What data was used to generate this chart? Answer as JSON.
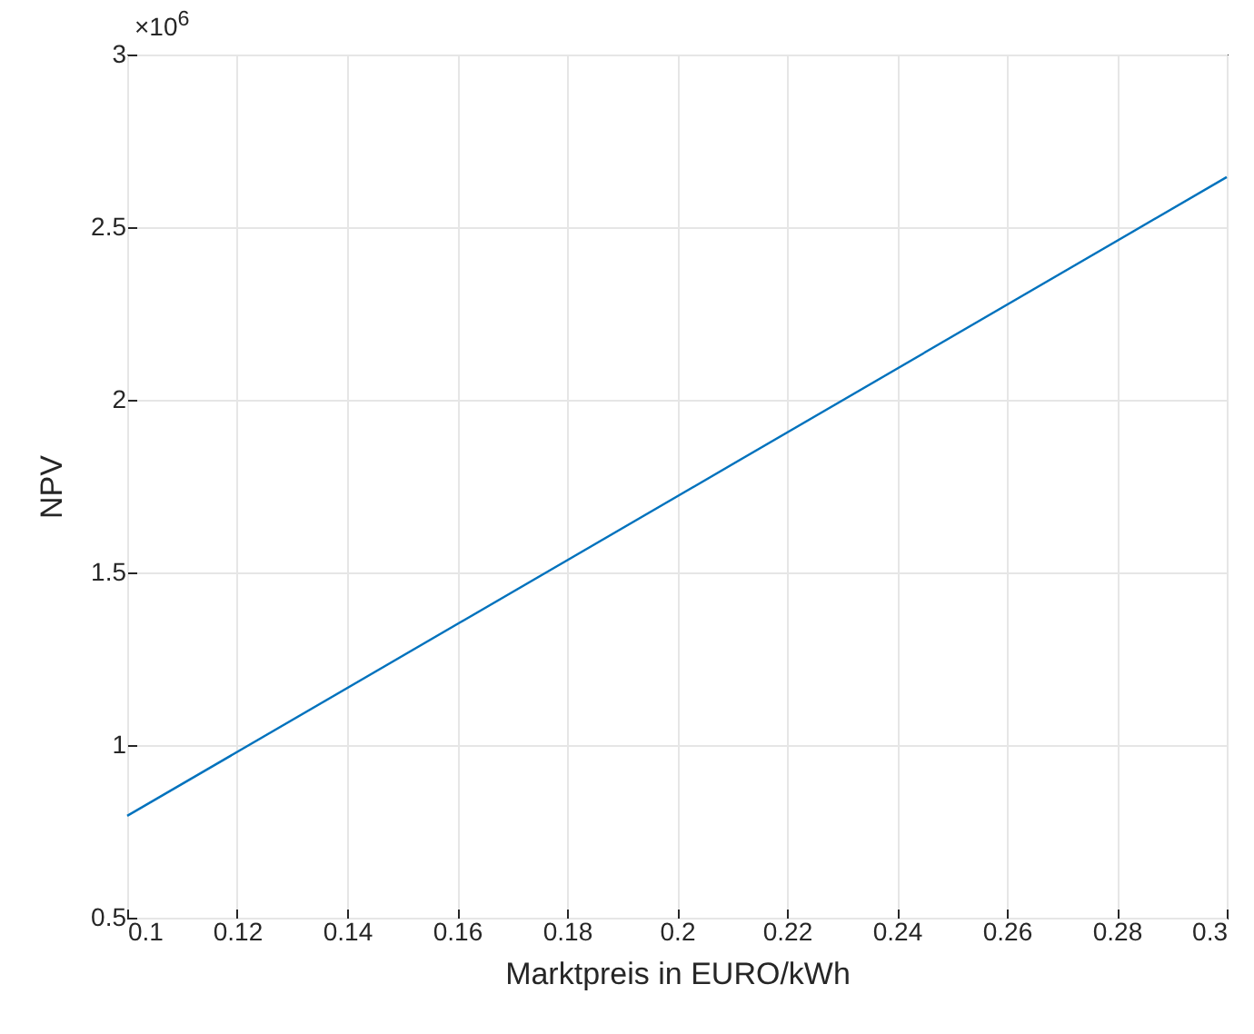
{
  "chart_data": {
    "type": "line",
    "xlabel": "Marktpreis in EURO/kWh",
    "ylabel": "NPV",
    "annotations": [
      "×10$^{6}$"
    ],
    "x": [
      0.1,
      0.3
    ],
    "series": [
      {
        "color": "#0072bd",
        "values": [
          0.795,
          2.645
        ]
      }
    ],
    "xlim": [
      0.1,
      0.3
    ],
    "xticks": [
      0.1,
      0.12,
      0.14,
      0.16,
      0.18,
      0.2,
      0.22,
      0.24,
      0.26,
      0.28,
      0.3
    ],
    "ylim": [
      0.5,
      3
    ],
    "yticks": [
      0.5,
      1,
      1.5,
      2,
      2.5,
      3
    ],
    "grid": true,
    "legend": false
  }
}
